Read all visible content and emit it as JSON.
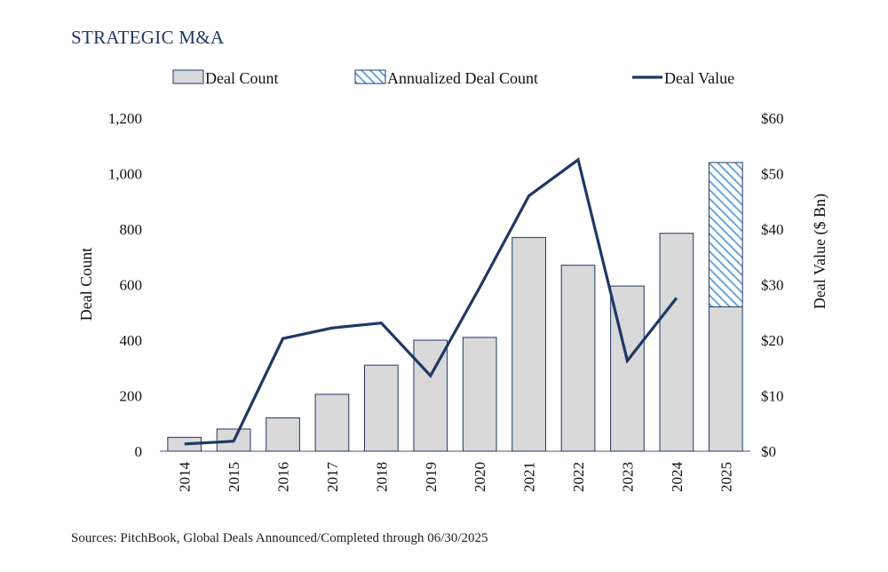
{
  "title": "STRATEGIC M&A",
  "source": "Sources: PitchBook, Global Deals Announced/Completed through 06/30/2025",
  "colors": {
    "bar_fill": "#d9d9d9",
    "bar_stroke": "#1f3864",
    "hatch": "#5b9bd5",
    "line": "#1f3864",
    "title": "#1f3864"
  },
  "chart_data": {
    "type": "bar",
    "categories": [
      "2014",
      "2015",
      "2016",
      "2017",
      "2018",
      "2019",
      "2020",
      "2021",
      "2022",
      "2023",
      "2024",
      "2025"
    ],
    "series": [
      {
        "name": "Deal Count",
        "type": "bar",
        "axis": "left",
        "values": [
          50,
          80,
          120,
          205,
          310,
          400,
          410,
          770,
          670,
          595,
          785,
          520
        ]
      },
      {
        "name": "Annualized Deal Count",
        "type": "bar-stacked-hatched",
        "axis": "left",
        "values": [
          null,
          null,
          null,
          null,
          null,
          null,
          null,
          null,
          null,
          null,
          null,
          520
        ]
      },
      {
        "name": "Deal Value",
        "type": "line",
        "axis": "right",
        "values": [
          1.3,
          1.8,
          20.3,
          22.2,
          23.1,
          13.6,
          29.5,
          46.0,
          52.5,
          16.3,
          27.6,
          null
        ]
      }
    ],
    "y_left": {
      "label": "Deal Count",
      "range": [
        0,
        1200
      ],
      "ticks": [
        0,
        200,
        400,
        600,
        800,
        1000,
        1200
      ],
      "tick_labels": [
        "0",
        "200",
        "400",
        "600",
        "800",
        "1,000",
        "1,200"
      ]
    },
    "y_right": {
      "label": "Deal Value ($ Bn)",
      "range": [
        0,
        60
      ],
      "ticks": [
        0,
        10,
        20,
        30,
        40,
        50,
        60
      ],
      "tick_labels": [
        "$0",
        "$10",
        "$20",
        "$30",
        "$40",
        "$50",
        "$60"
      ]
    },
    "legend": [
      "Deal Count",
      "Annualized Deal Count",
      "Deal Value"
    ],
    "legend_position": "top",
    "grid": false
  }
}
